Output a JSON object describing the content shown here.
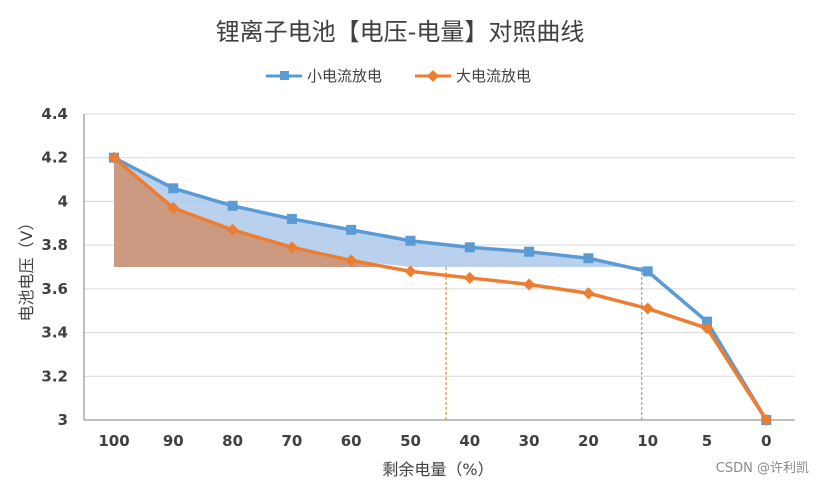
{
  "chart_data": {
    "type": "line",
    "title": "锂离子电池【电压-电量】对照曲线",
    "xlabel": "剩余电量（%）",
    "ylabel": "电池电压（V）",
    "categories": [
      "100",
      "90",
      "80",
      "70",
      "60",
      "50",
      "40",
      "30",
      "20",
      "10",
      "5",
      "0"
    ],
    "ylim": [
      3,
      4.4
    ],
    "yticks": [
      "3",
      "3.2",
      "3.4",
      "3.6",
      "3.8",
      "4",
      "4.2",
      "4.4"
    ],
    "grid": true,
    "legend_position": "top",
    "series": [
      {
        "name": "小电流放电",
        "color": "#5b9bd5",
        "marker": "square",
        "values": [
          4.2,
          4.06,
          3.98,
          3.92,
          3.87,
          3.82,
          3.79,
          3.77,
          3.74,
          3.68,
          3.45,
          3.0
        ]
      },
      {
        "name": "大电流放电",
        "color": "#ed7d31",
        "marker": "diamond",
        "values": [
          4.2,
          3.97,
          3.87,
          3.79,
          3.73,
          3.68,
          3.65,
          3.62,
          3.58,
          3.51,
          3.42,
          3.0
        ]
      }
    ],
    "shaded_regions": [
      {
        "color": "#a9c6ea",
        "bound_value": 3.7,
        "between": [
          "大电流放电",
          "小电流放电"
        ],
        "from_category": "100",
        "to_category": "10"
      },
      {
        "color": "#c9957a",
        "bound_value": 3.7,
        "from_category": "100",
        "to_category": "50"
      }
    ],
    "reference_lines": [
      {
        "axis": "x",
        "approx_category_position": 5.6,
        "color": "#c5860f",
        "style": "dashed"
      },
      {
        "axis": "x",
        "approx_category_position": 8.9,
        "color": "#5b9bd5",
        "style": "dashed"
      }
    ]
  },
  "watermark": "CSDN @许利凯"
}
